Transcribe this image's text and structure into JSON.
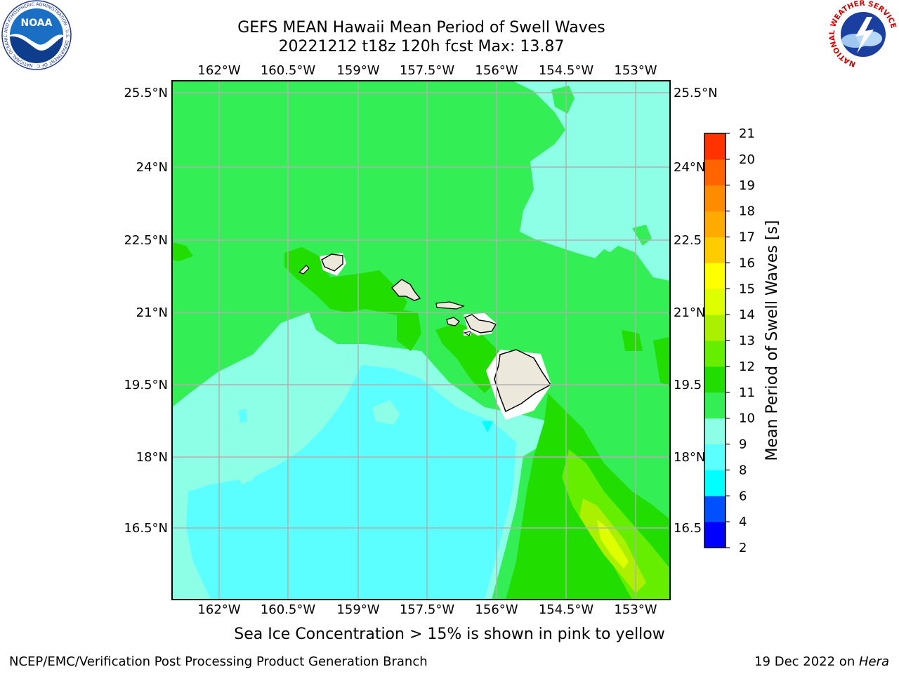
{
  "title": {
    "line1": "GEFS MEAN Hawaii Mean Period of Swell Waves",
    "line2": "20221212 t18z 120h fcst   Max: 13.87"
  },
  "map": {
    "lon_ticks": [
      "162°W",
      "160.5°W",
      "159°W",
      "157.5°W",
      "156°W",
      "154.5°W",
      "153°W"
    ],
    "lat_ticks": [
      "25.5°N",
      "24°N",
      "22.5°N",
      "21°N",
      "19.5°N",
      "18°N",
      "16.5°N"
    ],
    "lat_ticks_right": [
      "25.5°N",
      "24°N",
      "22.5",
      "21°N",
      "19.5",
      "18°N",
      "16.5"
    ]
  },
  "colorbar": {
    "label": "Mean Period of Swell Waves [s]",
    "ticks": [
      "2",
      "4",
      "6",
      "8",
      "9",
      "10",
      "11",
      "12",
      "13",
      "14",
      "15",
      "16",
      "17",
      "18",
      "19",
      "20",
      "21"
    ],
    "colors": [
      "#0000ff",
      "#0050ff",
      "#00ffff",
      "#5cffff",
      "#8cffe6",
      "#33ee55",
      "#22dd00",
      "#66ee00",
      "#aaf000",
      "#ddff00",
      "#ffff00",
      "#ffcc00",
      "#ffaa00",
      "#ff8c00",
      "#ff6400",
      "#ff3200",
      "#ff0000"
    ]
  },
  "notes": {
    "ice": "Sea Ice Concentration > 15% is shown in pink to yellow"
  },
  "footer": {
    "left": "NCEP/EMC/Verification Post Processing Product Generation Branch",
    "right_date": "19 Dec 2022 on ",
    "right_host": "Hera"
  },
  "logos": {
    "noaa": {
      "text": "NOAA",
      "ring_text": "NATIONAL OCEANIC AND ATMOSPHERIC ADMINISTRATION · U.S. DEPARTMENT OF COMMERCE"
    },
    "nws": {
      "ring_text": "NATIONAL WEATHER SERVICE"
    }
  }
}
